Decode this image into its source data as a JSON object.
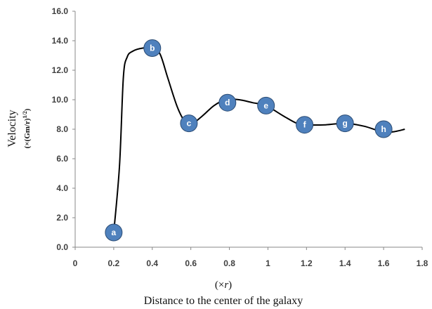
{
  "chart_data": {
    "type": "line",
    "title": "",
    "xlabel_unit": "(×r)",
    "xlabel": "Distance to the center of the galaxy",
    "ylabel": "Velocity",
    "ylabel_unit": "(×(Gm/r)^1/2)",
    "xlim": [
      0,
      1.8
    ],
    "ylim": [
      0,
      16
    ],
    "x_ticks": [
      "0",
      "0.2",
      "0.4",
      "0.6",
      "0.8",
      "1",
      "1.2",
      "1.4",
      "1.6",
      "1.8"
    ],
    "y_ticks": [
      "0.0",
      "2.0",
      "4.0",
      "6.0",
      "8.0",
      "10.0",
      "12.0",
      "14.0",
      "16.0"
    ],
    "grid": false,
    "curve_color": "#000000",
    "marker_color": "#4f81bd",
    "points": [
      {
        "label": "a",
        "x": 0.2,
        "y": 1.0
      },
      {
        "label": "b",
        "x": 0.4,
        "y": 13.5
      },
      {
        "label": "c",
        "x": 0.59,
        "y": 8.4
      },
      {
        "label": "d",
        "x": 0.79,
        "y": 9.8
      },
      {
        "label": "e",
        "x": 0.99,
        "y": 9.6
      },
      {
        "label": "f",
        "x": 1.19,
        "y": 8.3
      },
      {
        "label": "g",
        "x": 1.4,
        "y": 8.4
      },
      {
        "label": "h",
        "x": 1.6,
        "y": 8.0
      }
    ],
    "curve": [
      [
        0.2,
        1.0
      ],
      [
        0.23,
        5.5
      ],
      [
        0.25,
        11.5
      ],
      [
        0.27,
        12.9
      ],
      [
        0.3,
        13.3
      ],
      [
        0.35,
        13.5
      ],
      [
        0.4,
        13.5
      ],
      [
        0.44,
        13.1
      ],
      [
        0.48,
        11.5
      ],
      [
        0.53,
        9.5
      ],
      [
        0.57,
        8.5
      ],
      [
        0.6,
        8.3
      ],
      [
        0.66,
        8.9
      ],
      [
        0.72,
        9.6
      ],
      [
        0.78,
        10.0
      ],
      [
        0.85,
        10.0
      ],
      [
        0.92,
        9.8
      ],
      [
        0.99,
        9.6
      ],
      [
        1.08,
        8.9
      ],
      [
        1.15,
        8.4
      ],
      [
        1.2,
        8.3
      ],
      [
        1.3,
        8.3
      ],
      [
        1.4,
        8.4
      ],
      [
        1.5,
        8.2
      ],
      [
        1.6,
        7.8
      ],
      [
        1.66,
        7.85
      ],
      [
        1.71,
        8.0
      ]
    ]
  }
}
